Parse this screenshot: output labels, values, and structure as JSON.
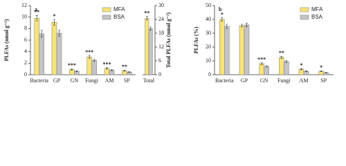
{
  "chart_data": [
    {
      "type": "bar",
      "panel": "a",
      "ylabel": "PLFAs (nmol g⁻¹)",
      "categories": [
        "Bacteria",
        "GP",
        "GN",
        "Fungi",
        "AM",
        "SP"
      ],
      "series": [
        {
          "name": "MFA",
          "color": "#f7e37a",
          "values": [
            9.8,
            9.1,
            0.9,
            3.1,
            1.1,
            0.7
          ],
          "errors": [
            0.5,
            0.5,
            0.15,
            0.25,
            0.12,
            0.1
          ]
        },
        {
          "name": "BSA",
          "color": "#c4c4c4",
          "values": [
            7.1,
            7.2,
            0.6,
            2.5,
            0.8,
            0.45
          ],
          "errors": [
            0.6,
            0.5,
            0.1,
            0.2,
            0.1,
            0.08
          ]
        }
      ],
      "annotations": [
        "**",
        "*",
        "***",
        "***",
        "***",
        "**"
      ],
      "ylim": [
        0,
        12
      ],
      "yticks": [
        0,
        2,
        4,
        6,
        8,
        10,
        12
      ],
      "legend": "upper right"
    },
    {
      "type": "bar",
      "ylabel": "Total PLFAs (nmol g⁻¹)",
      "categories": [
        "Total"
      ],
      "series": [
        {
          "name": "MFA",
          "color": "#f7e37a",
          "values": [
            24.5
          ],
          "errors": [
            0.8
          ]
        },
        {
          "name": "BSA",
          "color": "#c4c4c4",
          "values": [
            20
          ],
          "errors": [
            0.7
          ]
        }
      ],
      "annotations": [
        "**"
      ],
      "ylim": [
        0,
        30
      ],
      "yticks": [
        0,
        6,
        12,
        18,
        24,
        30
      ]
    },
    {
      "type": "bar",
      "panel": "b",
      "ylabel": "PLFAs (%)",
      "categories": [
        "Bacteria",
        "GP",
        "GN",
        "Fungi",
        "AM",
        "SP"
      ],
      "series": [
        {
          "name": "MFA",
          "color": "#f7e37a",
          "values": [
            40,
            35.5,
            8,
            12.5,
            4,
            2.5
          ],
          "errors": [
            1.2,
            1.0,
            0.6,
            0.8,
            0.4,
            0.3
          ]
        },
        {
          "name": "BSA",
          "color": "#c4c4c4",
          "values": [
            35,
            36,
            6,
            9.5,
            2.5,
            1.5
          ],
          "errors": [
            1.5,
            1.2,
            0.5,
            0.6,
            0.3,
            0.2
          ]
        }
      ],
      "annotations": [
        "*",
        null,
        "***",
        "**",
        "*",
        "*"
      ],
      "ylim": [
        0,
        50
      ],
      "yticks": [
        0,
        10,
        20,
        30,
        40,
        50
      ],
      "legend": "upper right"
    }
  ]
}
